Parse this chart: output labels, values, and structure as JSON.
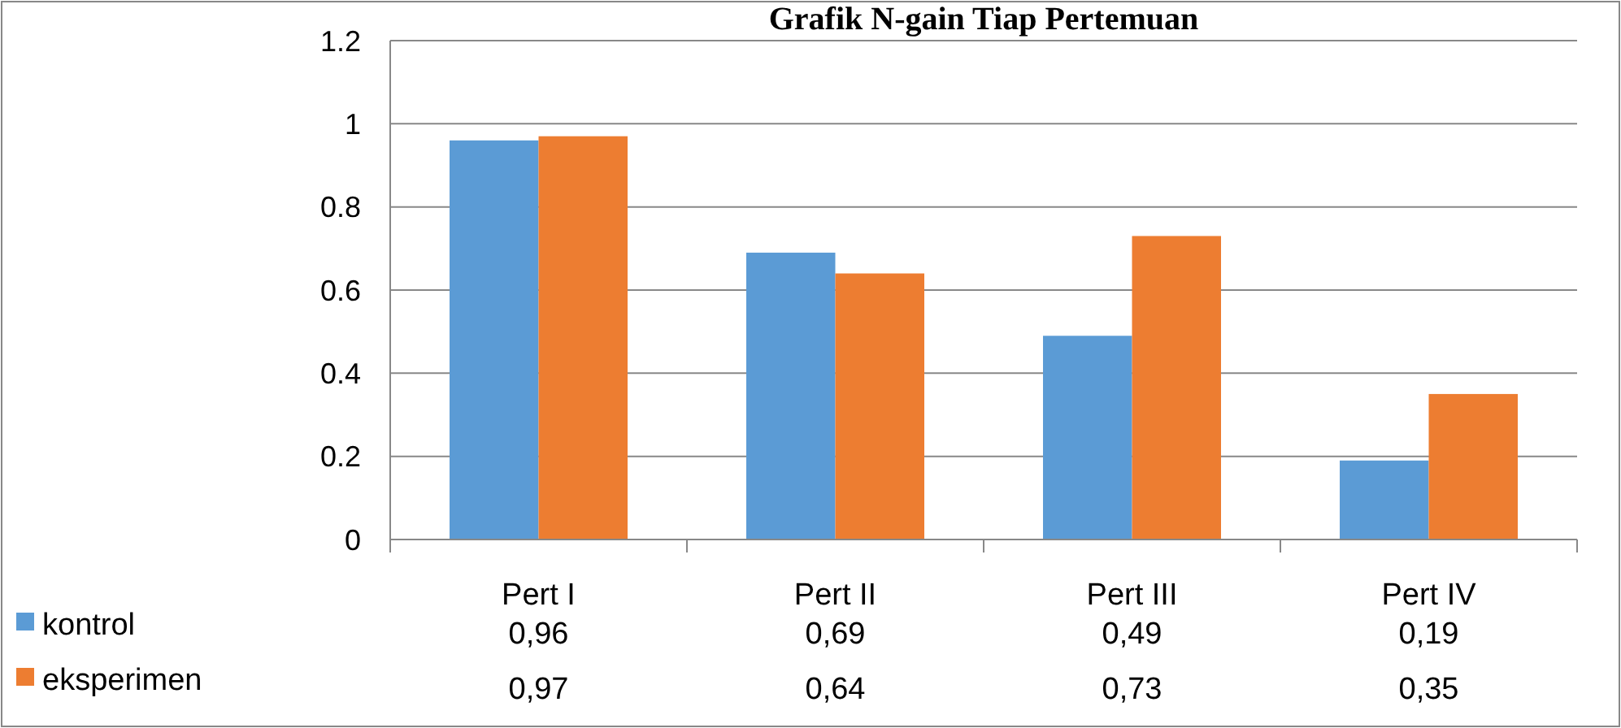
{
  "chart_data": {
    "type": "bar",
    "title": "Grafik N-gain Tiap Pertemuan",
    "categories": [
      "Pert I",
      "Pert II",
      "Pert III",
      "Pert IV"
    ],
    "series": [
      {
        "name": "kontrol",
        "color": "#5b9bd5",
        "values": [
          0.96,
          0.69,
          0.49,
          0.19
        ],
        "value_labels": [
          "0,96",
          "0,69",
          "0,49",
          "0,19"
        ]
      },
      {
        "name": "eksperimen",
        "color": "#ed7d31",
        "values": [
          0.97,
          0.64,
          0.73,
          0.35
        ],
        "value_labels": [
          "0,97",
          "0,64",
          "0,73",
          "0,35"
        ]
      }
    ],
    "ylim": [
      0,
      1.2
    ],
    "yticks": [
      0,
      0.2,
      0.4,
      0.6,
      0.8,
      1,
      1.2
    ],
    "grid": "y",
    "legend": "bottom left"
  }
}
